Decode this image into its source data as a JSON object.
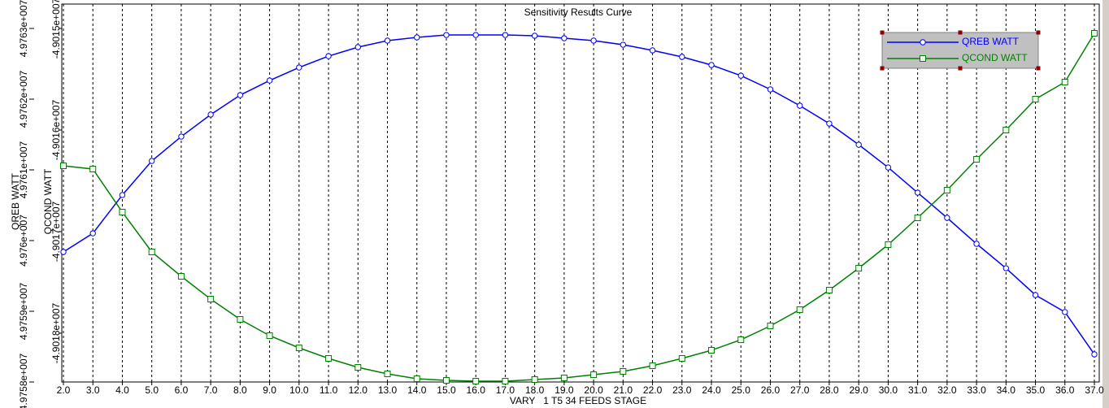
{
  "chart_data": {
    "type": "line",
    "title": "Sensitivity Results Curve",
    "xlabel": "VARY   1 T5 34 FEEDS STAGE",
    "ylabel": "QREB WATT",
    "y2label": "QCOND WATT",
    "x": [
      2,
      3,
      4,
      5,
      6,
      7,
      8,
      9,
      10,
      11,
      12,
      13,
      14,
      15,
      16,
      17,
      18,
      19,
      20,
      21,
      22,
      23,
      24,
      25,
      26,
      27,
      28,
      29,
      30,
      31,
      32,
      33,
      34,
      35,
      36,
      37
    ],
    "xlim": [
      2,
      37
    ],
    "xticks": [
      {
        "value": 2,
        "label": "2.0"
      },
      {
        "value": 3,
        "label": "3.0"
      },
      {
        "value": 4,
        "label": "4.0"
      },
      {
        "value": 5,
        "label": "5.0"
      },
      {
        "value": 6,
        "label": "6.0"
      },
      {
        "value": 7,
        "label": "7.0"
      },
      {
        "value": 8,
        "label": "8.0"
      },
      {
        "value": 9,
        "label": "9.0"
      },
      {
        "value": 10,
        "label": "10.0"
      },
      {
        "value": 11,
        "label": "11.0"
      },
      {
        "value": 12,
        "label": "12.0"
      },
      {
        "value": 13,
        "label": "13.0"
      },
      {
        "value": 14,
        "label": "14.0"
      },
      {
        "value": 15,
        "label": "15.0"
      },
      {
        "value": 16,
        "label": "16.0"
      },
      {
        "value": 17,
        "label": "17.0"
      },
      {
        "value": 18,
        "label": "18.0"
      },
      {
        "value": 19,
        "label": "19.0"
      },
      {
        "value": 20,
        "label": "20.0"
      },
      {
        "value": 21,
        "label": "21.0"
      },
      {
        "value": 22,
        "label": "22.0"
      },
      {
        "value": 23,
        "label": "23.0"
      },
      {
        "value": 24,
        "label": "24.0"
      },
      {
        "value": 25,
        "label": "25.0"
      },
      {
        "value": 26,
        "label": "26.0"
      },
      {
        "value": 27,
        "label": "27.0"
      },
      {
        "value": 28,
        "label": "28.0"
      },
      {
        "value": 29,
        "label": "29.0"
      },
      {
        "value": 30,
        "label": "30.0"
      },
      {
        "value": 31,
        "label": "31.0"
      },
      {
        "value": 32,
        "label": "32.0"
      },
      {
        "value": 33,
        "label": "33.0"
      },
      {
        "value": 34,
        "label": "34.0"
      },
      {
        "value": 35,
        "label": "35.0"
      },
      {
        "value": 36,
        "label": "36.0"
      },
      {
        "value": 37,
        "label": "37.0"
      }
    ],
    "ylim": [
      49758000,
      49763345
    ],
    "yticks": [
      {
        "value": 49758000,
        "label": "4.9758e+007"
      },
      {
        "value": 49759000,
        "label": "4.9759e+007"
      },
      {
        "value": 49760000,
        "label": "4.976e+007"
      },
      {
        "value": 49761000,
        "label": "4.9761e+007"
      },
      {
        "value": 49762000,
        "label": "4.9762e+007"
      },
      {
        "value": 49763000,
        "label": "4.9763e+007"
      }
    ],
    "y2lim": [
      -49018480,
      -49014760
    ],
    "y2ticks": [
      {
        "value": -49018000,
        "label": "-4.9018e+007"
      },
      {
        "value": -49017000,
        "label": "-4.9017e+007"
      },
      {
        "value": -49016000,
        "label": "-4.9016e+007"
      },
      {
        "value": -49015000,
        "label": "-4.9015e+007"
      }
    ],
    "grid": true,
    "legend": "upper right",
    "series": [
      {
        "name": "QREB WATT",
        "color": "#0000ff",
        "marker": "circle",
        "values": [
          49759839,
          49760103,
          49760644,
          49761126,
          49761471,
          49761782,
          49762057,
          49762264,
          49762448,
          49762609,
          49762736,
          49762828,
          49762874,
          49762908,
          49762908,
          49762908,
          49762897,
          49762862,
          49762828,
          49762770,
          49762690,
          49762598,
          49762483,
          49762333,
          49762138,
          49761908,
          49761655,
          49761356,
          49761034,
          49760678,
          49760322,
          49759954,
          49759609,
          49759230,
          49758989,
          49758391
        ]
      },
      {
        "name": "QCOND WATT",
        "color": "#008000",
        "marker": "square",
        "axis": "y2",
        "values": [
          -49016352,
          -49016384,
          -49016808,
          -49017200,
          -49017440,
          -49017664,
          -49017864,
          -49018024,
          -49018144,
          -49018248,
          -49018336,
          -49018400,
          -49018448,
          -49018464,
          -49018472,
          -49018472,
          -49018456,
          -49018440,
          -49018408,
          -49018376,
          -49018320,
          -49018248,
          -49018168,
          -49018064,
          -49017928,
          -49017768,
          -49017576,
          -49017360,
          -49017128,
          -49016864,
          -49016592,
          -49016288,
          -49016000,
          -49015696,
          -49015528,
          -49015048
        ]
      }
    ]
  }
}
